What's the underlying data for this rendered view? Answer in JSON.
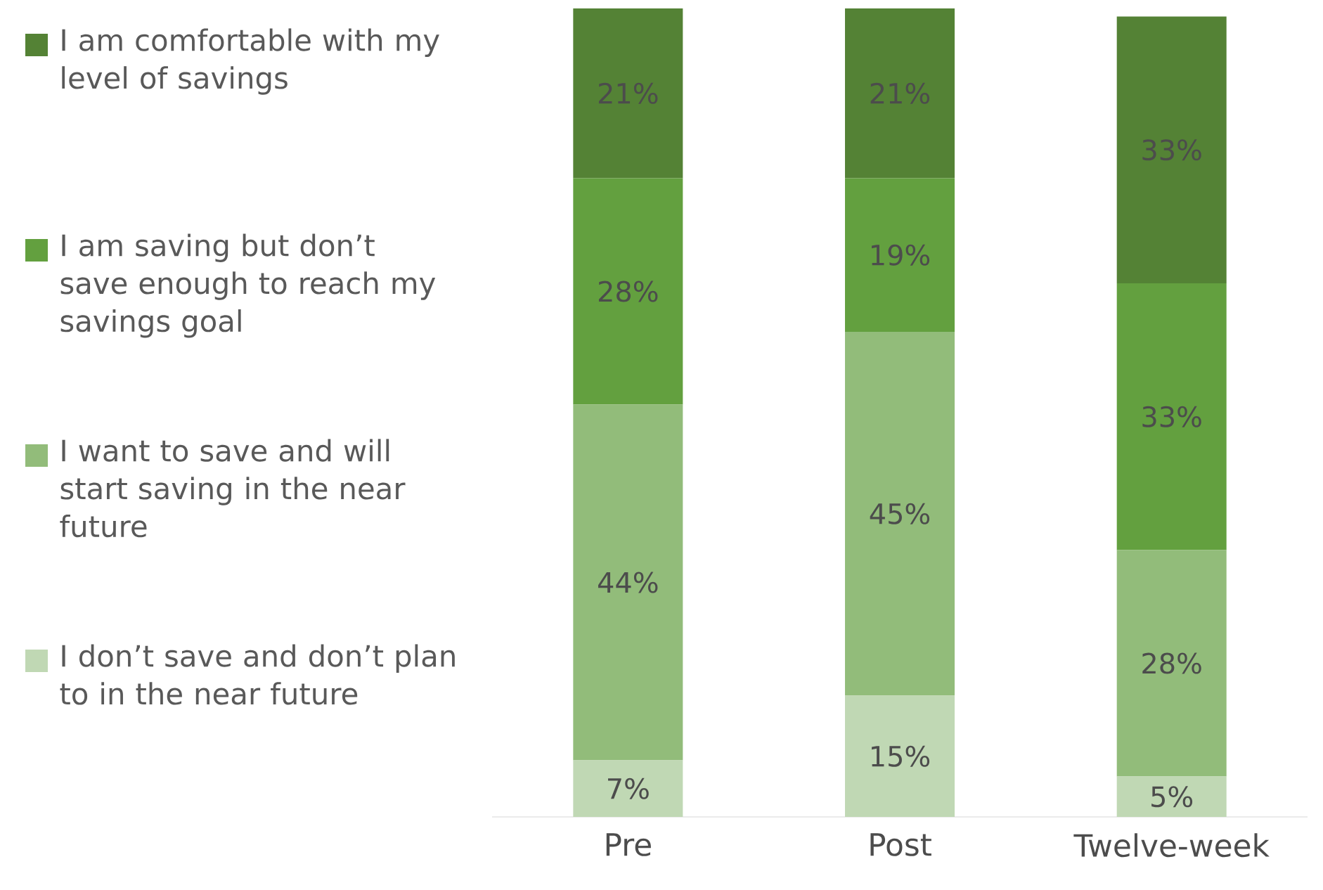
{
  "chart_data": {
    "type": "bar",
    "stacked": true,
    "legend": "left",
    "tick_labels": "x",
    "categories": [
      "Pre",
      "Post",
      "Twelve-week"
    ],
    "series": [
      {
        "name": "I don’t save and don’t plan to in the near future",
        "color": "#c0d8b4",
        "values": [
          7,
          15,
          5
        ],
        "value_labels": [
          "7%",
          "15%",
          "5%"
        ]
      },
      {
        "name": "I want to save and will start saving in the near future",
        "color": "#92bc7a",
        "values": [
          44,
          45,
          28
        ],
        "value_labels": [
          "44%",
          "45%",
          "28%"
        ]
      },
      {
        "name": "I am saving but don’t save enough to reach my savings goal",
        "color": "#63a03f",
        "values": [
          28,
          19,
          33
        ],
        "value_labels": [
          "28%",
          "19%",
          "33%"
        ]
      },
      {
        "name": "I am comfortable with my level of savings",
        "color": "#548235",
        "values": [
          21,
          21,
          33
        ],
        "value_labels": [
          "21%",
          "21%",
          "33%"
        ]
      }
    ]
  }
}
